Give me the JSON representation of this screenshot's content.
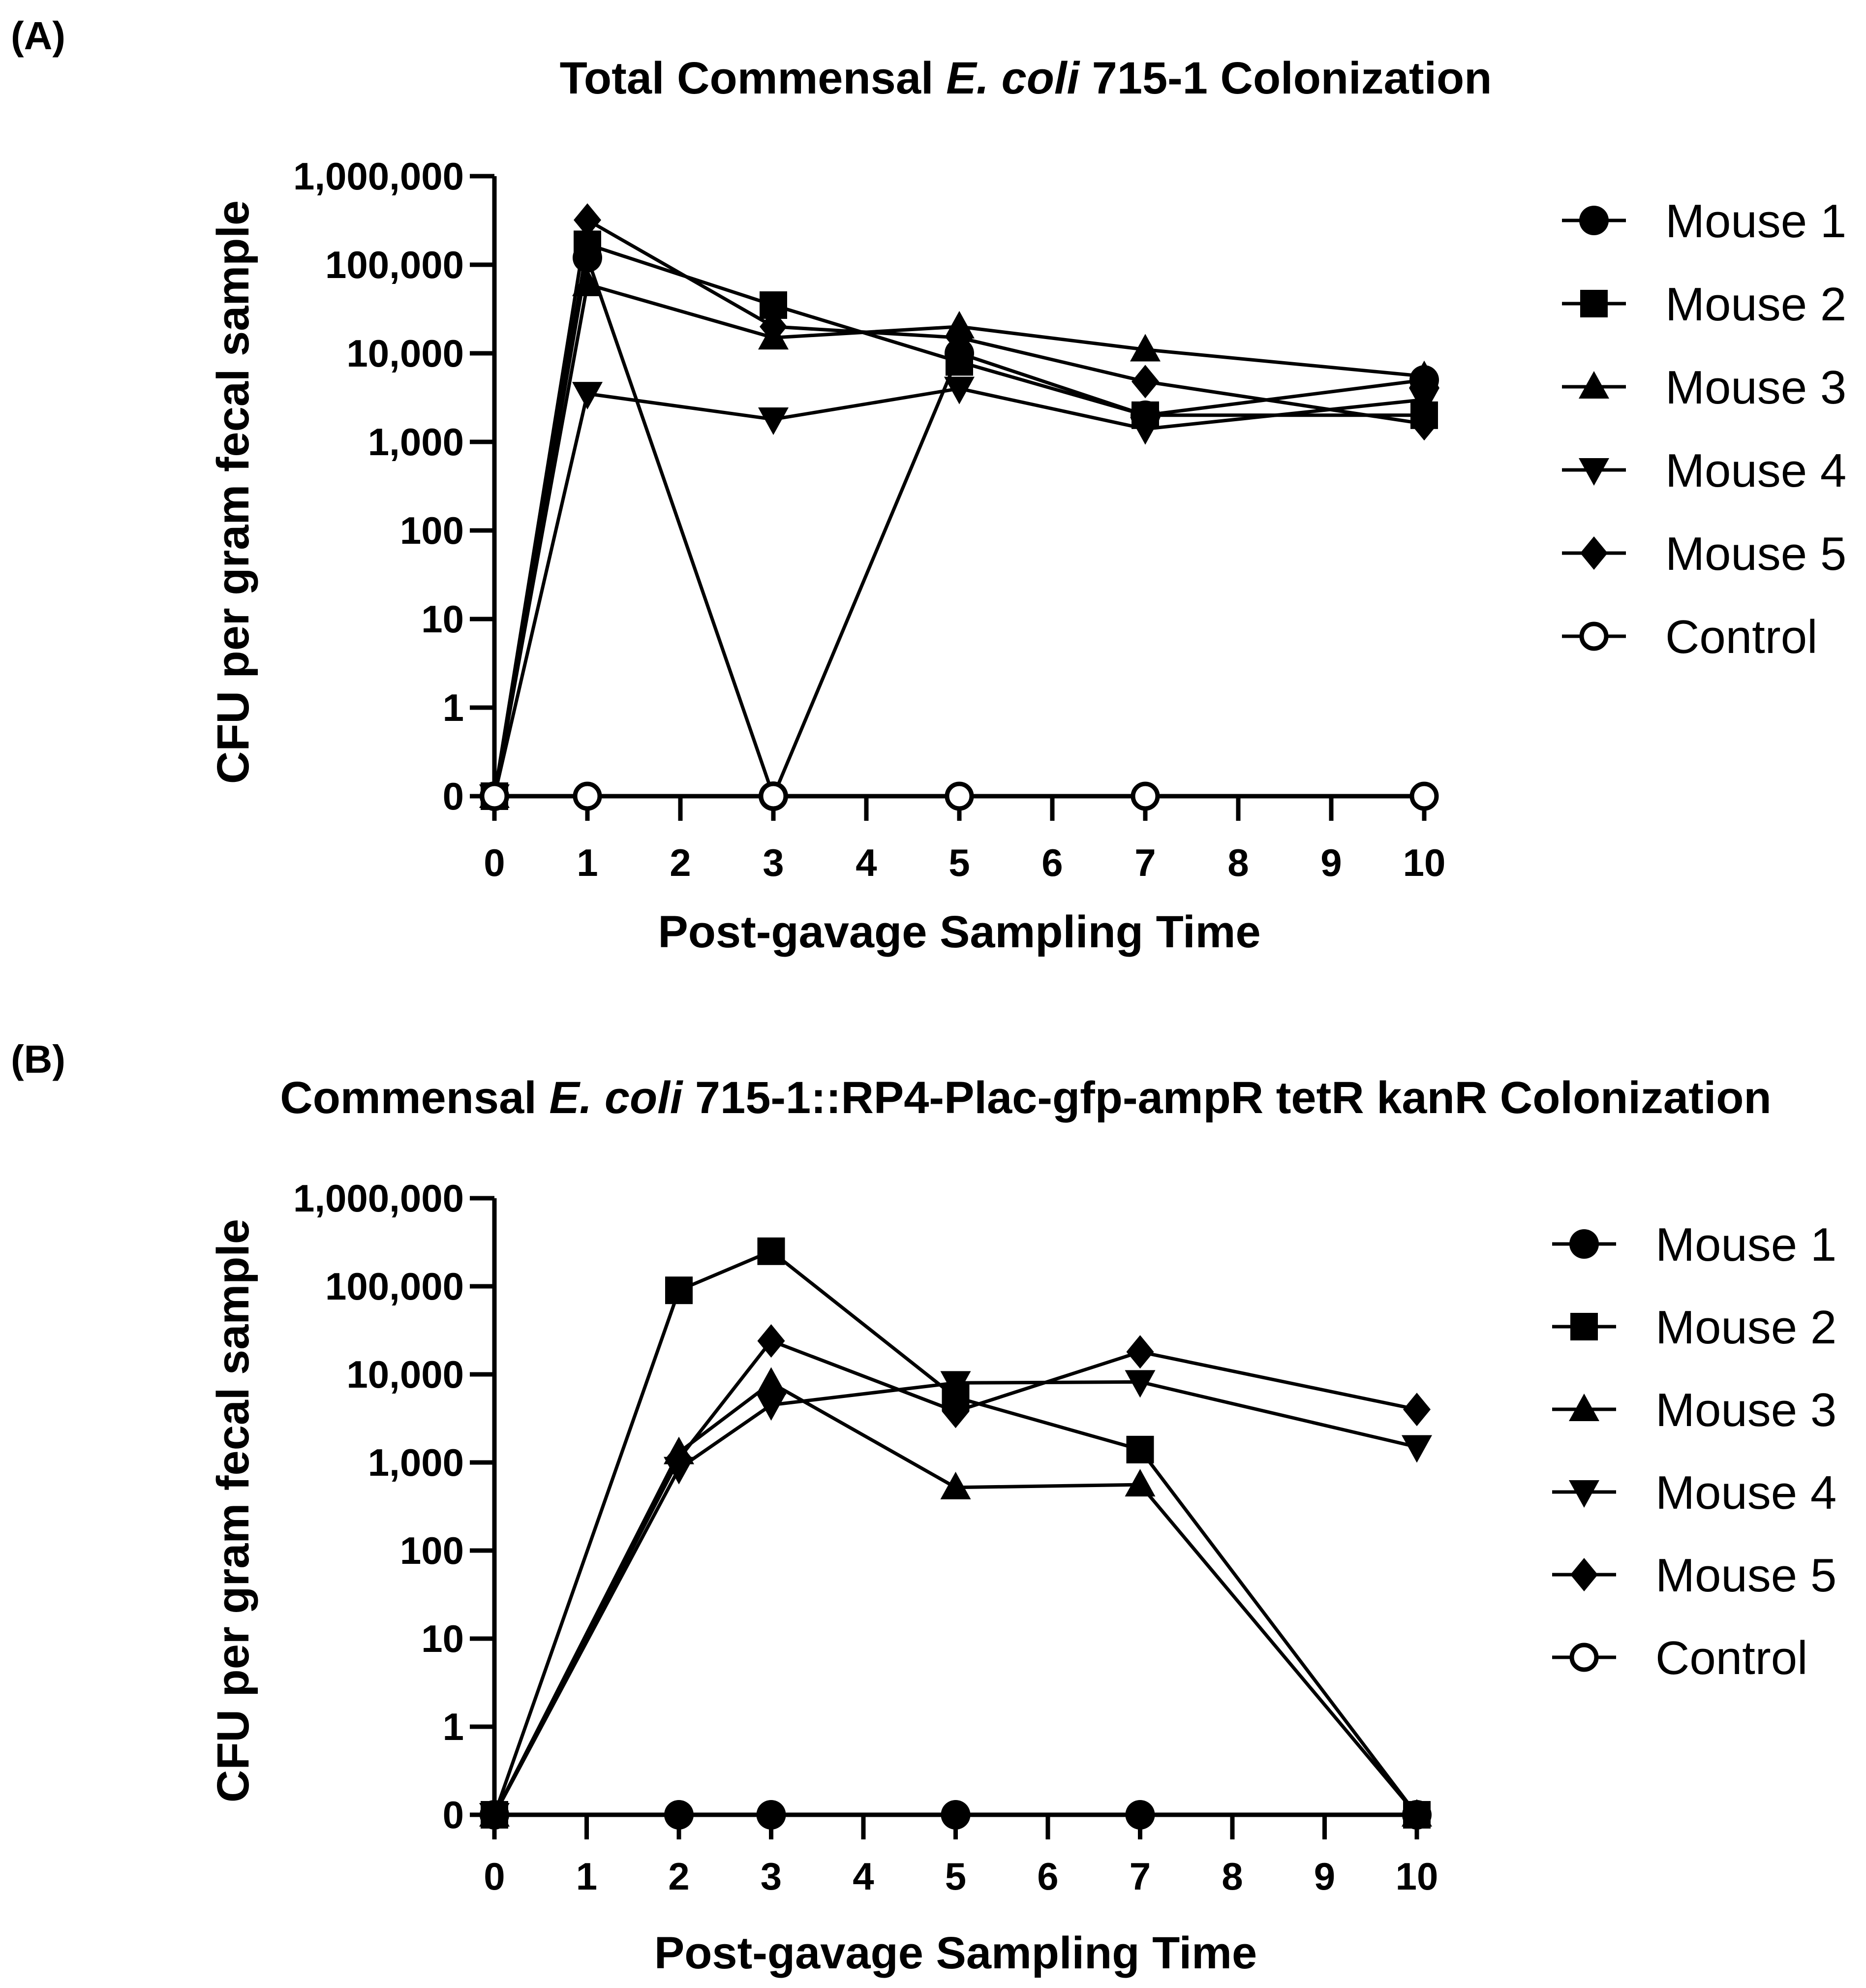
{
  "chart_data": [
    {
      "panel_label": "(A)",
      "type": "line",
      "title_parts": [
        {
          "text": "Total Commensal ",
          "italic": false
        },
        {
          "text": "E. coli",
          "italic": true
        },
        {
          "text": " 715-1 Colonization",
          "italic": false
        }
      ],
      "xlabel": "Post-gavage Sampling Time",
      "ylabel": "CFU per gram fecal sample",
      "x_ticks": [
        0,
        1,
        2,
        3,
        4,
        5,
        6,
        7,
        8,
        9,
        10
      ],
      "y_ticks": [
        {
          "value": 0,
          "label": "0"
        },
        {
          "value": 1,
          "label": "1"
        },
        {
          "value": 10,
          "label": "10"
        },
        {
          "value": 100,
          "label": "100"
        },
        {
          "value": 1000,
          "label": "1,000"
        },
        {
          "value": 10000,
          "label": "10,000"
        },
        {
          "value": 100000,
          "label": "100,000"
        },
        {
          "value": 1000000,
          "label": "1,000,000"
        }
      ],
      "y_scale": "log (0 plotted at baseline)",
      "xlim": [
        0,
        10
      ],
      "series": [
        {
          "name": "Mouse 1",
          "marker": "circle",
          "points": [
            [
              0,
              0
            ],
            [
              1,
              120000
            ],
            [
              3,
              0
            ],
            [
              5,
              10000
            ],
            [
              7,
              2000
            ],
            [
              10,
              5000
            ]
          ]
        },
        {
          "name": "Mouse 2",
          "marker": "square",
          "points": [
            [
              0,
              0
            ],
            [
              1,
              170000
            ],
            [
              3,
              35000
            ],
            [
              5,
              8000
            ],
            [
              7,
              2000
            ],
            [
              10,
              2000
            ]
          ]
        },
        {
          "name": "Mouse 3",
          "marker": "triangle-up",
          "points": [
            [
              0,
              0
            ],
            [
              1,
              60000
            ],
            [
              3,
              15000
            ],
            [
              5,
              20000
            ],
            [
              7,
              11000
            ],
            [
              10,
              5500
            ]
          ]
        },
        {
          "name": "Mouse 4",
          "marker": "triangle-down",
          "points": [
            [
              0,
              0
            ],
            [
              1,
              3500
            ],
            [
              3,
              1800
            ],
            [
              5,
              4000
            ],
            [
              7,
              1400
            ],
            [
              10,
              3000
            ]
          ]
        },
        {
          "name": "Mouse 5",
          "marker": "diamond",
          "points": [
            [
              0,
              0
            ],
            [
              1,
              320000
            ],
            [
              3,
              20000
            ],
            [
              5,
              15000
            ],
            [
              7,
              4800
            ],
            [
              10,
              1600
            ]
          ]
        },
        {
          "name": "Control",
          "marker": "open-circle",
          "points": [
            [
              0,
              0
            ],
            [
              1,
              0
            ],
            [
              3,
              0
            ],
            [
              5,
              0
            ],
            [
              7,
              0
            ],
            [
              10,
              0
            ]
          ]
        }
      ]
    },
    {
      "panel_label": "(B)",
      "type": "line",
      "title_parts": [
        {
          "text": "Commensal ",
          "italic": false
        },
        {
          "text": "E. coli",
          "italic": true
        },
        {
          "text": " 715-1::RP4-Plac-gfp-ampR tetR kanR Colonization",
          "italic": false
        }
      ],
      "xlabel": "Post-gavage Sampling Time",
      "ylabel": "CFU per gram fecal sample",
      "x_ticks": [
        0,
        1,
        2,
        3,
        4,
        5,
        6,
        7,
        8,
        9,
        10
      ],
      "y_ticks": [
        {
          "value": 0,
          "label": "0"
        },
        {
          "value": 1,
          "label": "1"
        },
        {
          "value": 10,
          "label": "10"
        },
        {
          "value": 100,
          "label": "100"
        },
        {
          "value": 1000,
          "label": "1,000"
        },
        {
          "value": 10000,
          "label": "10,000"
        },
        {
          "value": 100000,
          "label": "100,000"
        },
        {
          "value": 1000000,
          "label": "1,000,000"
        }
      ],
      "y_scale": "log (0 plotted at baseline)",
      "xlim": [
        0,
        10
      ],
      "series": [
        {
          "name": "Mouse 1",
          "marker": "circle",
          "points": [
            [
              0,
              0
            ],
            [
              2,
              0
            ],
            [
              3,
              0
            ],
            [
              5,
              0
            ],
            [
              7,
              0
            ],
            [
              10,
              0
            ]
          ]
        },
        {
          "name": "Mouse 2",
          "marker": "square",
          "points": [
            [
              0,
              0
            ],
            [
              2,
              90000
            ],
            [
              3,
              250000
            ],
            [
              5,
              5500
            ],
            [
              7,
              1400
            ],
            [
              10,
              0
            ]
          ]
        },
        {
          "name": "Mouse 3",
          "marker": "triangle-up",
          "points": [
            [
              0,
              0
            ],
            [
              2,
              1300
            ],
            [
              3,
              8000
            ],
            [
              5,
              520
            ],
            [
              7,
              560
            ],
            [
              10,
              0
            ]
          ]
        },
        {
          "name": "Mouse 4",
          "marker": "triangle-down",
          "points": [
            [
              0,
              0
            ],
            [
              2,
              850
            ],
            [
              3,
              4500
            ],
            [
              5,
              8000
            ],
            [
              7,
              8200
            ],
            [
              10,
              1500
            ]
          ]
        },
        {
          "name": "Mouse 5",
          "marker": "diamond",
          "points": [
            [
              0,
              0
            ],
            [
              2,
              1100
            ],
            [
              3,
              24000
            ],
            [
              5,
              3800
            ],
            [
              7,
              18000
            ],
            [
              10,
              4000
            ]
          ]
        },
        {
          "name": "Control",
          "marker": "open-circle",
          "points": []
        }
      ]
    }
  ]
}
